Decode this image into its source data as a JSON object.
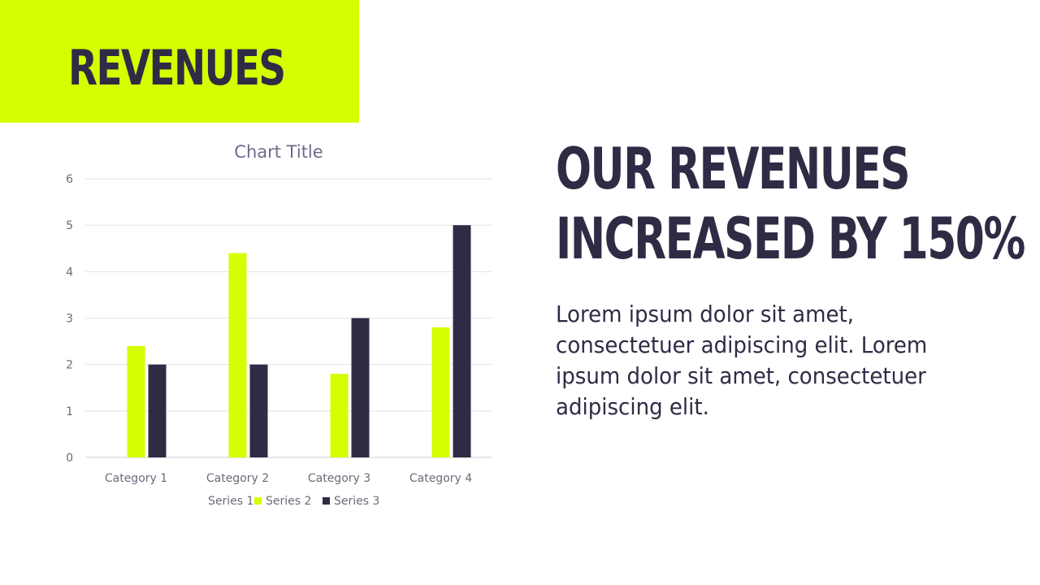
{
  "slide": {
    "title": "REVENUES",
    "headline_line1": "OUR REVENUES",
    "headline_line2": "INCREASED BY 150%",
    "body": "Lorem ipsum dolor sit amet, consectetuer adipiscing elit. Lorem ipsum dolor sit amet, consectetuer adipiscing elit."
  },
  "colors": {
    "accent": "#d4ff00",
    "dark": "#2e2c45",
    "series1": "#4472c4",
    "series2": "#d4ff00",
    "series3": "#2e2c45",
    "grid": "#e2e2e2",
    "label": "#6b6b7b"
  },
  "chart_data": {
    "type": "bar",
    "title": "Chart Title",
    "categories": [
      "Category 1",
      "Category 2",
      "Category 3",
      "Category 4"
    ],
    "series": [
      {
        "name": "Series 1",
        "values": [
          0,
          0,
          0,
          0
        ]
      },
      {
        "name": "Series 2",
        "values": [
          2.4,
          4.4,
          1.8,
          2.8
        ]
      },
      {
        "name": "Series 3",
        "values": [
          2,
          2,
          3,
          5
        ]
      }
    ],
    "ylim": [
      0,
      6
    ],
    "yticks": [
      0,
      1,
      2,
      3,
      4,
      5,
      6
    ],
    "grid": true,
    "legend": "bottom"
  }
}
